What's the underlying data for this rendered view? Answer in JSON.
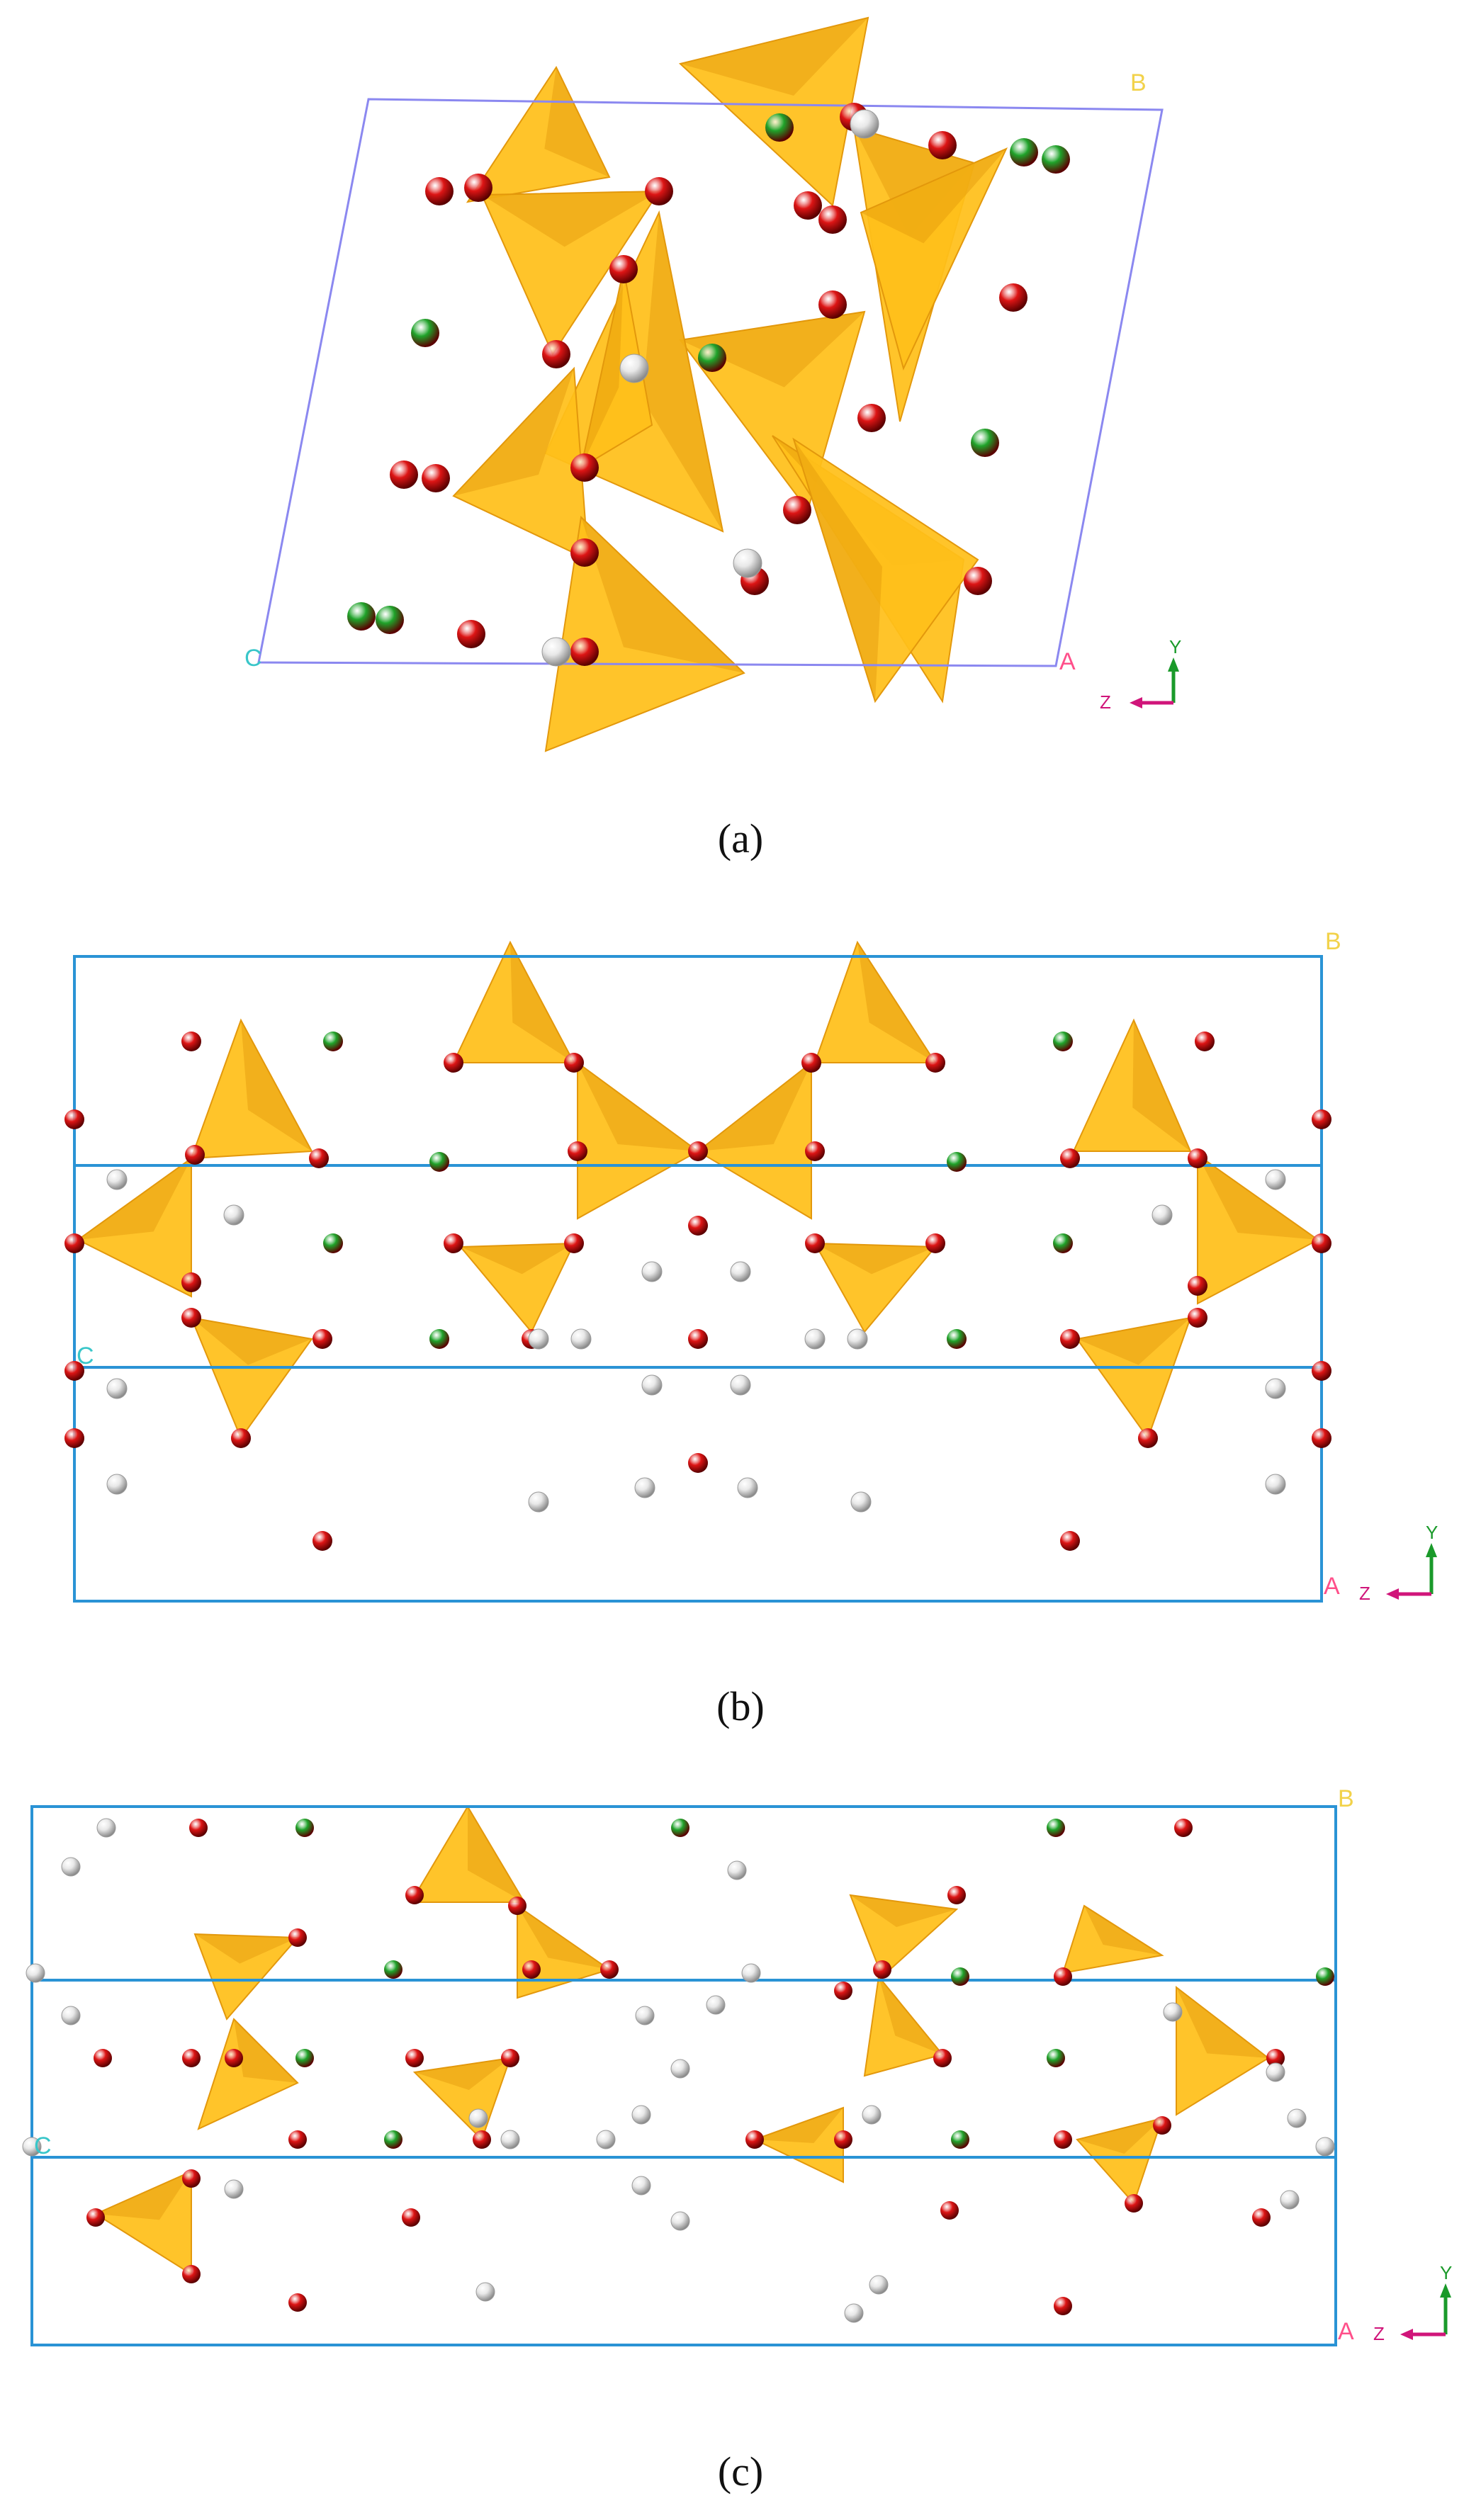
{
  "captions": {
    "a": "(a)",
    "b": "(b)",
    "c": "(c)"
  },
  "cell_labels": {
    "b": "B",
    "c": "C",
    "a": "A"
  },
  "axis_labels": {
    "y": "Y",
    "z": "Z"
  },
  "colors": {
    "oxygen": "#dd1515",
    "metal_green": "#1fa32a",
    "white_atom": "#e8e8e8",
    "tetrahedron": "#ffbf1a",
    "tetrahedron_dark": "#e3980c",
    "cell_edge_a": "#8b88f0",
    "cell_edge_bc": "#2a93d5",
    "label_yellow": "#f2d24a",
    "label_pink": "#ff4f8a",
    "label_cyan": "#39c6c9",
    "axis_y": "#1a9a2a",
    "axis_z": "#d0157a"
  }
}
